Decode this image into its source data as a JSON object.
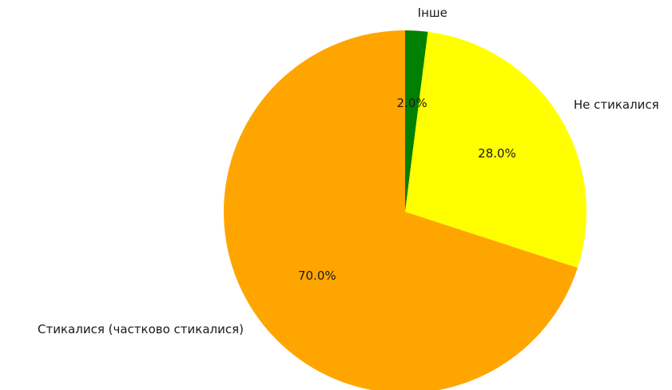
{
  "chart_data": {
    "type": "pie",
    "slices": [
      {
        "label": "Інше",
        "value": 2.0,
        "pct_label": "2.0%",
        "color": "#008000"
      },
      {
        "label": "Не стикалися",
        "value": 28.0,
        "pct_label": "28.0%",
        "color": "#ffff00"
      },
      {
        "label": "Стикалися (частково стикалися)",
        "value": 70.0,
        "pct_label": "70.0%",
        "color": "#ffa500"
      }
    ],
    "start_angle_deg": 90,
    "direction": "clockwise",
    "legend": "none"
  }
}
